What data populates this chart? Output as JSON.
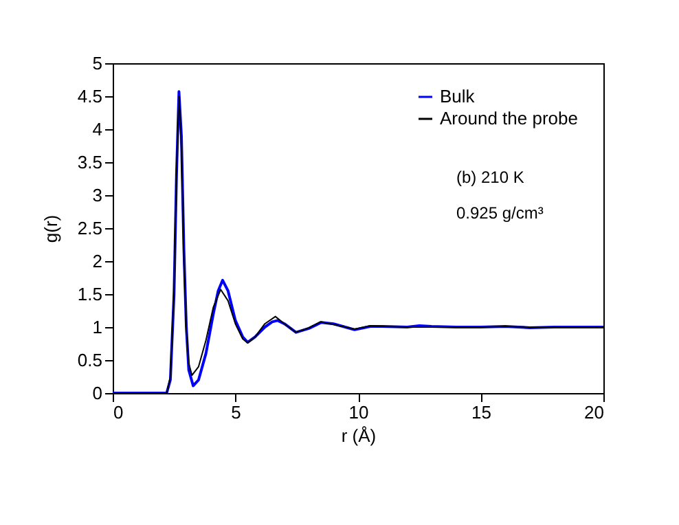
{
  "chart_data": {
    "type": "line",
    "xlabel": "r (Å)",
    "ylabel": "g(r)",
    "xlim": [
      0,
      20
    ],
    "xticks": [
      0,
      5,
      10,
      15,
      20
    ],
    "ylim": [
      0,
      5
    ],
    "yticks": [
      0,
      0.5,
      1,
      1.5,
      2,
      2.5,
      3,
      3.5,
      4,
      4.5,
      5
    ],
    "grid": false,
    "legend": "top right",
    "marker": "none",
    "line_style": "solid",
    "annotations": [
      "(b)   210 K",
      "0.925 g/cm³"
    ],
    "series": [
      {
        "name": "Bulk",
        "color": "#0000ff",
        "x": [
          0,
          2.2,
          2.35,
          2.5,
          2.6,
          2.7,
          2.8,
          2.9,
          3.0,
          3.1,
          3.28,
          3.5,
          3.8,
          4.1,
          4.3,
          4.48,
          4.7,
          5.0,
          5.3,
          5.5,
          5.8,
          6.2,
          6.5,
          6.72,
          7.0,
          7.47,
          8.0,
          8.5,
          9.0,
          9.86,
          10.5,
          11,
          12,
          12.5,
          13,
          14,
          15,
          16,
          17,
          18,
          19,
          20
        ],
        "values": [
          0,
          0,
          0.2,
          1.5,
          3.3,
          4.57,
          3.9,
          2.2,
          1.0,
          0.35,
          0.11,
          0.2,
          0.6,
          1.2,
          1.55,
          1.71,
          1.55,
          1.1,
          0.85,
          0.77,
          0.85,
          1.0,
          1.08,
          1.1,
          1.05,
          0.92,
          0.98,
          1.07,
          1.05,
          0.96,
          1.01,
          1.01,
          1.0,
          1.02,
          1.01,
          1.0,
          1.0,
          1.01,
          0.99,
          1.0,
          1.0,
          1.0
        ]
      },
      {
        "name": "Around the probe",
        "color": "#000000",
        "x": [
          0,
          2.2,
          2.35,
          2.5,
          2.6,
          2.7,
          2.8,
          2.9,
          3.0,
          3.1,
          3.23,
          3.5,
          3.8,
          4.1,
          4.4,
          4.7,
          5.0,
          5.3,
          5.5,
          5.8,
          6.2,
          6.63,
          7.0,
          7.47,
          8.0,
          8.46,
          9.0,
          9.86,
          10.5,
          11,
          12,
          13,
          14,
          15,
          16,
          17,
          18,
          19,
          20
        ],
        "values": [
          0,
          0,
          0.25,
          1.6,
          3.4,
          4.5,
          3.7,
          2.0,
          0.95,
          0.45,
          0.27,
          0.4,
          0.8,
          1.3,
          1.57,
          1.4,
          1.05,
          0.82,
          0.76,
          0.85,
          1.05,
          1.16,
          1.05,
          0.92,
          0.99,
          1.08,
          1.04,
          0.97,
          1.02,
          1.01,
          1.0,
          1.0,
          1.0,
          1.0,
          1.01,
          1.0,
          1.0,
          1.0,
          1.0
        ]
      }
    ]
  }
}
